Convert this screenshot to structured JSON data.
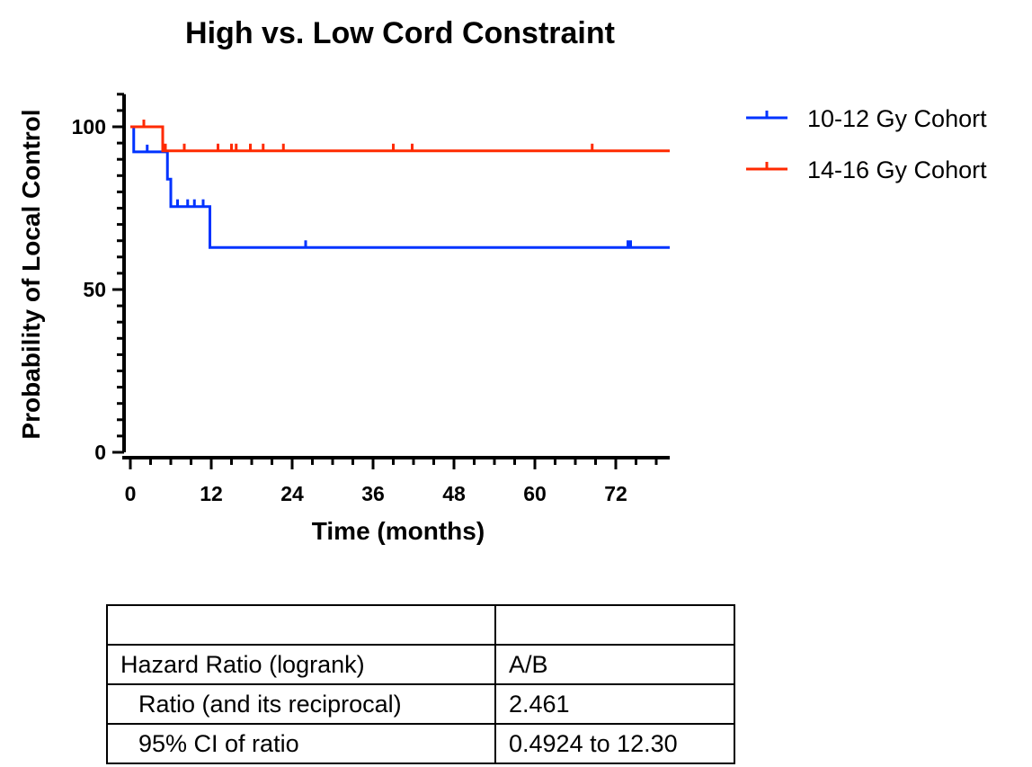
{
  "chart_data": {
    "type": "line",
    "subtype": "kaplan-meier",
    "title": "High vs. Low Cord Constraint",
    "xlabel": "Time (months)",
    "ylabel": "Probability of Local Control",
    "xlim": [
      0,
      80
    ],
    "ylim": [
      0,
      110
    ],
    "xticks": [
      "0",
      "12",
      "24",
      "36",
      "48",
      "60",
      "72"
    ],
    "yticks": [
      "0",
      "50",
      "100"
    ],
    "legend_position": "top-right",
    "series": [
      {
        "name": "10-12 Gy Cohort",
        "color": "#0033ff",
        "steps": [
          [
            0,
            100
          ],
          [
            0.5,
            92.3
          ],
          [
            5.5,
            83.9
          ],
          [
            6,
            75.5
          ],
          [
            11.8,
            62.9
          ],
          [
            80,
            62.9
          ]
        ],
        "censored_x": [
          2.5,
          7,
          8.5,
          9.5,
          10.8,
          26,
          73.8,
          74.2
        ]
      },
      {
        "name": "14-16 Gy Cohort",
        "color": "#ff2a00",
        "steps": [
          [
            0,
            100
          ],
          [
            4.8,
            92.6
          ],
          [
            80,
            92.6
          ]
        ],
        "censored_x": [
          2,
          5.2,
          8,
          13,
          15,
          15.7,
          17.8,
          19.7,
          22.7,
          39,
          41.8,
          68.5
        ]
      }
    ]
  },
  "stats_table": {
    "header": [
      "",
      ""
    ],
    "rows": [
      [
        "Hazard Ratio (logrank)",
        "A/B"
      ],
      [
        "Ratio (and its reciprocal)",
        "2.461"
      ],
      [
        "95% CI of ratio",
        "0.4924 to 12.30"
      ]
    ]
  }
}
